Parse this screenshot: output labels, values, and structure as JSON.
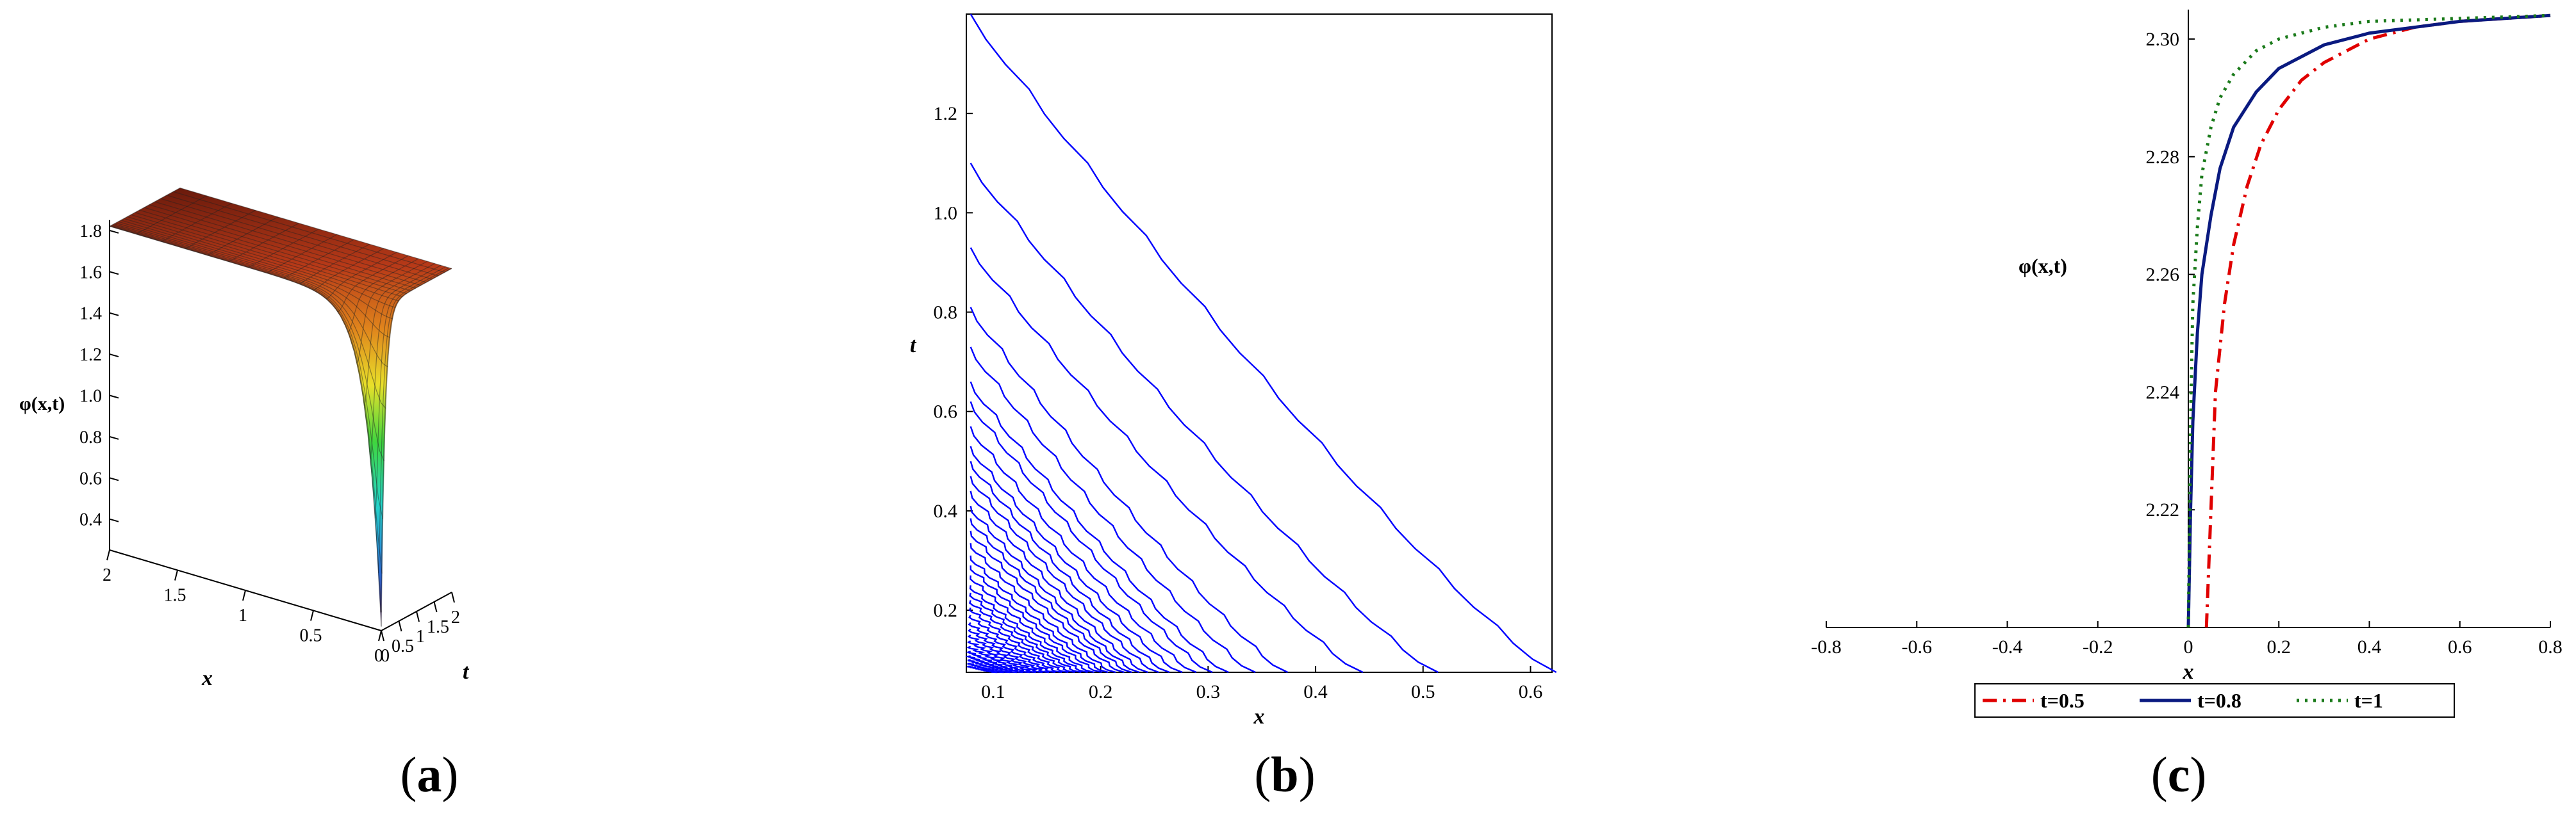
{
  "chart_data": [
    {
      "type": "surface3d",
      "caption": "a",
      "zlabel": "φ(x,t)",
      "xlabel": "x",
      "ylabel": "t",
      "z_ticks": [
        "0.4",
        "0.6",
        "0.8",
        "1.0",
        "1.2",
        "1.4",
        "1.6",
        "1.8"
      ],
      "x_ticks": [
        "2",
        "1.5",
        "1",
        "0.5",
        "0"
      ],
      "t_ticks": [
        "0",
        "0.5",
        "1",
        "1.5",
        "2"
      ],
      "colormap": [
        "#5a1a6b",
        "#2b6fe0",
        "#23d6c8",
        "#3fd63f",
        "#e8e02a",
        "#e0841c",
        "#b83a18",
        "#6a1a0c"
      ]
    },
    {
      "type": "contour",
      "caption": "b",
      "xlabel": "x",
      "ylabel": "t",
      "xlim": [
        0.075,
        0.62
      ],
      "ylim": [
        0.075,
        1.4
      ],
      "x_ticks": [
        "0.1",
        "0.2",
        "0.3",
        "0.4",
        "0.5",
        "0.6"
      ],
      "y_ticks": [
        "0.2",
        "0.4",
        "0.6",
        "0.8",
        "1.0",
        "1.2"
      ],
      "color": "#0000ff",
      "contours": [
        {
          "x": 0.62,
          "y": 1.4
        },
        {
          "x": 0.51,
          "y": 1.1
        },
        {
          "x": 0.44,
          "y": 0.93
        },
        {
          "x": 0.37,
          "y": 0.81
        },
        {
          "x": 0.34,
          "y": 0.73
        },
        {
          "x": 0.315,
          "y": 0.66
        },
        {
          "x": 0.3,
          "y": 0.62
        },
        {
          "x": 0.285,
          "y": 0.57
        },
        {
          "x": 0.272,
          "y": 0.53
        },
        {
          "x": 0.26,
          "y": 0.5
        },
        {
          "x": 0.25,
          "y": 0.47
        },
        {
          "x": 0.24,
          "y": 0.44
        },
        {
          "x": 0.232,
          "y": 0.41
        },
        {
          "x": 0.225,
          "y": 0.385
        },
        {
          "x": 0.218,
          "y": 0.36
        },
        {
          "x": 0.21,
          "y": 0.335
        },
        {
          "x": 0.203,
          "y": 0.31
        },
        {
          "x": 0.197,
          "y": 0.29
        },
        {
          "x": 0.19,
          "y": 0.27
        },
        {
          "x": 0.184,
          "y": 0.25
        },
        {
          "x": 0.178,
          "y": 0.235
        },
        {
          "x": 0.172,
          "y": 0.22
        },
        {
          "x": 0.166,
          "y": 0.205
        },
        {
          "x": 0.16,
          "y": 0.19
        },
        {
          "x": 0.154,
          "y": 0.175
        },
        {
          "x": 0.148,
          "y": 0.162
        },
        {
          "x": 0.142,
          "y": 0.15
        },
        {
          "x": 0.136,
          "y": 0.138
        },
        {
          "x": 0.13,
          "y": 0.127
        },
        {
          "x": 0.124,
          "y": 0.117
        },
        {
          "x": 0.118,
          "y": 0.108
        },
        {
          "x": 0.112,
          "y": 0.1
        },
        {
          "x": 0.106,
          "y": 0.093
        },
        {
          "x": 0.1,
          "y": 0.087
        }
      ]
    },
    {
      "type": "line",
      "caption": "c",
      "ylabel": "φ(x,t)",
      "xlabel": "x",
      "xlim": [
        -0.8,
        0.8
      ],
      "ylim": [
        2.2,
        2.305
      ],
      "x_ticks": [
        "-0.8",
        "-0.6",
        "-0.4",
        "-0.2",
        "0",
        "0.2",
        "0.4",
        "0.6",
        "0.8"
      ],
      "y_ticks": [
        "2.22",
        "2.24",
        "2.26",
        "2.28",
        "2.30"
      ],
      "legend_position": "bottom",
      "series": [
        {
          "name": "t=0.5",
          "color": "#e00000",
          "style": "dashdot",
          "x": [
            0.04,
            0.05,
            0.06,
            0.08,
            0.1,
            0.13,
            0.16,
            0.2,
            0.25,
            0.3,
            0.4,
            0.5,
            0.6,
            0.7,
            0.8
          ],
          "y": [
            2.2,
            2.22,
            2.24,
            2.255,
            2.265,
            2.275,
            2.282,
            2.288,
            2.293,
            2.296,
            2.3,
            2.302,
            2.303,
            2.3035,
            2.304
          ]
        },
        {
          "name": "t=0.8",
          "color": "#0a1a80",
          "style": "solid",
          "x": [
            0.0,
            0.005,
            0.01,
            0.02,
            0.03,
            0.05,
            0.07,
            0.1,
            0.15,
            0.2,
            0.3,
            0.4,
            0.5,
            0.6,
            0.8
          ],
          "y": [
            2.2,
            2.22,
            2.235,
            2.25,
            2.26,
            2.27,
            2.278,
            2.285,
            2.291,
            2.295,
            2.299,
            2.301,
            2.302,
            2.303,
            2.304
          ]
        },
        {
          "name": "t=1",
          "color": "#1a7a1a",
          "style": "dotted",
          "x": [
            0.0,
            0.003,
            0.006,
            0.01,
            0.02,
            0.03,
            0.05,
            0.07,
            0.1,
            0.15,
            0.2,
            0.3,
            0.4,
            0.6,
            0.8
          ],
          "y": [
            2.2,
            2.22,
            2.24,
            2.255,
            2.268,
            2.277,
            2.285,
            2.29,
            2.294,
            2.298,
            2.3,
            2.302,
            2.303,
            2.3035,
            2.304
          ]
        }
      ]
    }
  ]
}
